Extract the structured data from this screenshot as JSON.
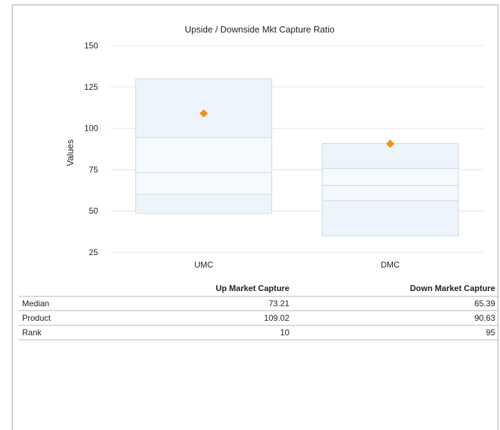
{
  "chart_data": {
    "type": "box",
    "title": "Upside / Downside Mkt Capture Ratio",
    "ylabel": "Values",
    "xlabel": "",
    "ylim": [
      25,
      150
    ],
    "yticks": [
      25,
      50,
      75,
      100,
      125,
      150
    ],
    "grid": true,
    "categories": [
      "UMC",
      "DMC"
    ],
    "boxes": [
      {
        "category": "UMC",
        "low": 48.5,
        "q1": 60.2,
        "median": 73.21,
        "q3": 94.5,
        "high": 130.0,
        "product": 109.02
      },
      {
        "category": "DMC",
        "low": 35.0,
        "q1": 56.3,
        "median": 65.39,
        "q3": 75.8,
        "high": 90.9,
        "product": 90.63
      }
    ],
    "colors": {
      "box_fill": "#eef4fb",
      "box_stroke": "#c6d9ea",
      "marker": "#f39214",
      "grid": "#e4e4e4"
    }
  },
  "table": {
    "headers": [
      "",
      "Up Market Capture",
      "Down Market Capture"
    ],
    "rows": [
      {
        "label": "Median",
        "umc": "73.21",
        "dmc": "65.39"
      },
      {
        "label": "Product",
        "umc": "109.02",
        "dmc": "90.63"
      },
      {
        "label": "Rank",
        "umc": "10",
        "dmc": "95"
      }
    ]
  }
}
